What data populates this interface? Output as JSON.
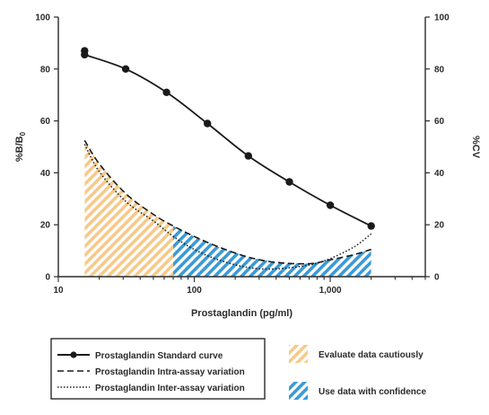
{
  "chart_data": {
    "type": "line",
    "x_scale": "log",
    "xlim": [
      10,
      5000
    ],
    "ylim_left": [
      0,
      100
    ],
    "ylim_right": [
      0,
      100
    ],
    "xlabel": "Prostaglandin (pg/ml)",
    "ylabel_left": {
      "main": "%B/B",
      "sub": "0"
    },
    "ylabel_right": "%CV",
    "x_ticks": [
      {
        "value": 10,
        "label": "10"
      },
      {
        "value": 100,
        "label": "100"
      },
      {
        "value": 1000,
        "label": "1,000"
      }
    ],
    "y_ticks_left": [
      "0",
      "20",
      "40",
      "60",
      "80",
      "100"
    ],
    "y_ticks_right": [
      "0",
      "20",
      "40",
      "60",
      "80",
      "100"
    ],
    "grid": false,
    "series": [
      {
        "name": "Prostaglandin Standard curve",
        "style": "solid-with-markers",
        "x": [
          15.6,
          31.3,
          62.5,
          125,
          250,
          500,
          1000,
          2000
        ],
        "y": [
          85.5,
          80.0,
          71.0,
          59.0,
          46.5,
          36.5,
          27.5,
          19.5
        ],
        "extra_points": [
          [
            15.6,
            87.0
          ]
        ]
      },
      {
        "name": "Prostaglandin Intra-assay variation",
        "style": "dashed",
        "x": [
          15.6,
          20,
          31.3,
          50,
          70,
          100,
          150,
          250,
          400,
          700,
          1000,
          1500,
          2000
        ],
        "y": [
          52.5,
          43.5,
          32.0,
          24.0,
          19.5,
          15.5,
          11.5,
          7.5,
          5.5,
          5.0,
          6.5,
          8.5,
          10.5
        ]
      },
      {
        "name": "Prostaglandin Inter-assay variation",
        "style": "dotted",
        "x": [
          15.6,
          20,
          31.3,
          50,
          70,
          100,
          150,
          250,
          400,
          700,
          1000,
          1500,
          2000
        ],
        "y": [
          51.0,
          40.5,
          29.0,
          21.5,
          15.5,
          10.5,
          6.5,
          3.5,
          3.0,
          4.5,
          7.0,
          11.5,
          16.5
        ]
      }
    ],
    "regions": [
      {
        "name": "Evaluate data cautiously",
        "x_range": [
          15.6,
          70
        ],
        "color": "#f7c98a"
      },
      {
        "name": "Use data with confidence",
        "x_range": [
          70,
          2000
        ],
        "color": "#3a9ad6"
      }
    ],
    "legend": {
      "placement": "bottom",
      "line_entries": [
        "Prostaglandin Standard curve",
        "Prostaglandin Intra-assay variation",
        "Prostaglandin Inter-assay variation"
      ],
      "region_entries": [
        "Evaluate data cautiously",
        "Use data with confidence"
      ]
    },
    "colors": {
      "axis": "#2a2a2a",
      "line": "#1a1a1a",
      "caution_hatch": "#f7c98a",
      "confidence_hatch": "#3a9ad6"
    }
  }
}
